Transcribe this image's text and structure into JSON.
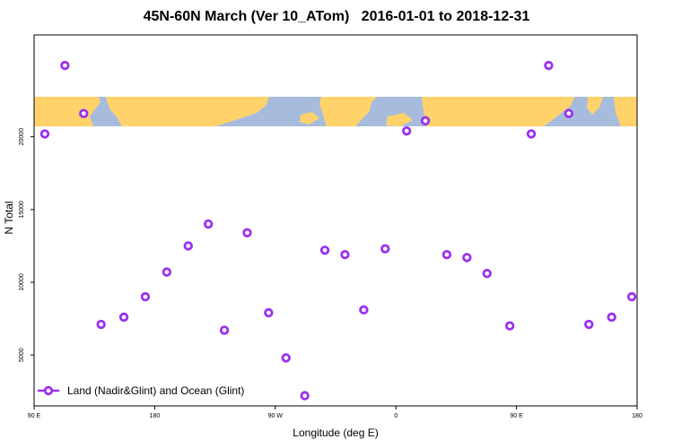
{
  "chart_data": {
    "type": "scatter",
    "title": "45N-60N March (Ver 10_ATom)   2016-01-01 to 2018-12-31",
    "xlabel": "Longitude (deg E)",
    "ylabel": "N Total",
    "x_axis": {
      "ticks": [
        {
          "value": 90,
          "label": "90 E"
        },
        {
          "value": 180,
          "label": "180"
        },
        {
          "value": 270,
          "label": "90 W"
        },
        {
          "value": 360,
          "label": "0"
        },
        {
          "value": 450,
          "label": "90 E"
        },
        {
          "value": 540,
          "label": "180"
        }
      ],
      "range": [
        90,
        540
      ]
    },
    "y_axis": {
      "ticks": [
        5000,
        10000,
        15000,
        20000
      ],
      "range": [
        1500,
        27000
      ]
    },
    "grid": false,
    "legend": {
      "placement": "bottom-left",
      "entries": [
        "Land (Nadir&Glint) and Ocean (Glint)"
      ]
    },
    "series": [
      {
        "name": "Land (Nadir&Glint) and Ocean (Glint)",
        "color": "#9b30ef",
        "points": [
          {
            "x": 98,
            "y": 20200
          },
          {
            "x": 113,
            "y": 24900
          },
          {
            "x": 127,
            "y": 21600
          },
          {
            "x": 140,
            "y": 7100
          },
          {
            "x": 157,
            "y": 7600
          },
          {
            "x": 173,
            "y": 9000
          },
          {
            "x": 189,
            "y": 10700
          },
          {
            "x": 205,
            "y": 12500
          },
          {
            "x": 220,
            "y": 14000
          },
          {
            "x": 232,
            "y": 6700
          },
          {
            "x": 249,
            "y": 13400
          },
          {
            "x": 265,
            "y": 7900
          },
          {
            "x": 278,
            "y": 4800
          },
          {
            "x": 292,
            "y": 2200
          },
          {
            "x": 307,
            "y": 12200
          },
          {
            "x": 322,
            "y": 11900
          },
          {
            "x": 336,
            "y": 8100
          },
          {
            "x": 352,
            "y": 12300
          },
          {
            "x": 368,
            "y": 20400
          },
          {
            "x": 382,
            "y": 21100
          },
          {
            "x": 398,
            "y": 11900
          },
          {
            "x": 413,
            "y": 11700
          },
          {
            "x": 428,
            "y": 10600
          },
          {
            "x": 445,
            "y": 7000
          },
          {
            "x": 461,
            "y": 20200
          },
          {
            "x": 474,
            "y": 24900
          },
          {
            "x": 489,
            "y": 21600
          },
          {
            "x": 504,
            "y": 7100
          },
          {
            "x": 521,
            "y": 7600
          },
          {
            "x": 536,
            "y": 9000
          }
        ]
      }
    ],
    "map_inset": {
      "description_colors": {
        "land": "#ffd36a",
        "ocean": "#a7bcdd"
      }
    }
  }
}
